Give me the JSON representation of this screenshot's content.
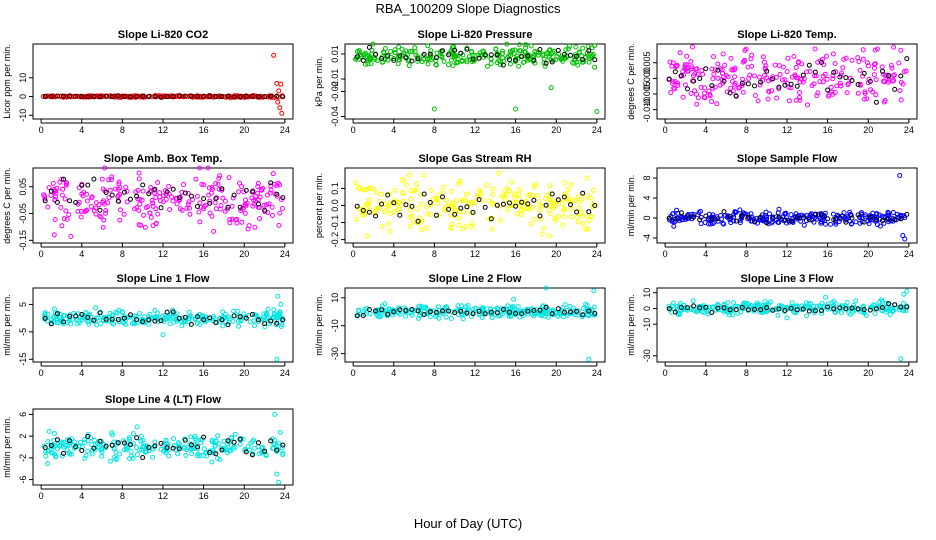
{
  "page": {
    "title": "RBA_100209  Slope Diagnostics",
    "xlabel": "Hour of Day (UTC)"
  },
  "chart_data": [
    {
      "type": "scatter",
      "title": "Slope Li-820 CO2",
      "ylabel": "Licor ppm per min.",
      "color": "#ff0000",
      "xticks": [
        "0",
        "4",
        "8",
        "12",
        "16",
        "20",
        "24"
      ],
      "xlim": [
        -0.8,
        24.8
      ],
      "ylim": [
        -12,
        28
      ],
      "yticks": [
        {
          "v": 10,
          "label": "10"
        },
        {
          "v": 0,
          "label": "0"
        },
        {
          "v": -10,
          "label": "-10"
        }
      ],
      "base": {
        "mean": 0,
        "sd": 0.25
      },
      "extra": [
        [
          22.9,
          22
        ],
        [
          23.2,
          7
        ],
        [
          23.4,
          3
        ],
        [
          23.6,
          6.5
        ],
        [
          23.3,
          -3
        ],
        [
          23.5,
          -6
        ],
        [
          23.7,
          -9
        ]
      ]
    },
    {
      "type": "scatter",
      "title": "Slope Li-820 Pressure",
      "ylabel": "kPa per min.",
      "color": "#00c000",
      "xticks": [
        "0",
        "4",
        "8",
        "12",
        "16",
        "20",
        "24"
      ],
      "xlim": [
        -0.8,
        24.8
      ],
      "ylim": [
        -0.042,
        0.018
      ],
      "yticks": [
        {
          "v": 0.01,
          "label": "0.01"
        },
        {
          "v": -0.01,
          "label": "-0.01"
        },
        {
          "v": -0.02,
          "label": "-0.02"
        },
        {
          "v": -0.04,
          "label": "-0.04"
        }
      ],
      "base": {
        "mean": 0.008,
        "sd": 0.004
      },
      "extra": [
        [
          8,
          -0.034
        ],
        [
          16,
          -0.034
        ],
        [
          19.5,
          -0.017
        ],
        [
          24,
          -0.036
        ]
      ]
    },
    {
      "type": "scatter",
      "title": "Slope Li-820 Temp.",
      "ylabel": "degrees C per min.",
      "color": "#ff00ff",
      "xticks": [
        "0",
        "4",
        "8",
        "12",
        "16",
        "20",
        "24"
      ],
      "xlim": [
        -0.8,
        24.8
      ],
      "ylim": [
        -0.013,
        0.011
      ],
      "yticks": [
        {
          "v": 0.005,
          "label": "0.005"
        },
        {
          "v": 0,
          "label": "0.000"
        },
        {
          "v": -0.005,
          "label": "-0.005"
        },
        {
          "v": -0.01,
          "label": "-0.010"
        }
      ],
      "base": {
        "mean": 0.0,
        "sd": 0.004
      },
      "extra": [
        [
          22.5,
          0.01
        ],
        [
          23.2,
          0.009
        ]
      ]
    },
    {
      "type": "scatter",
      "title": "Slope Amb. Box Temp.",
      "ylabel": "degrees C per min.",
      "color": "#ff00ff",
      "xticks": [
        "0",
        "4",
        "8",
        "12",
        "16",
        "20",
        "24"
      ],
      "xlim": [
        -0.8,
        24.8
      ],
      "ylim": [
        -0.16,
        0.12
      ],
      "yticks": [
        {
          "v": 0.05,
          "label": "0.05"
        },
        {
          "v": -0.05,
          "label": "-0.05"
        },
        {
          "v": -0.15,
          "label": "-0.15"
        }
      ],
      "base": {
        "mean": 0.0,
        "sd": 0.05
      },
      "extra": []
    },
    {
      "type": "scatter",
      "title": "Slope Gas Stream RH",
      "ylabel": "percent per min.",
      "color": "#ffff00",
      "xticks": [
        "0",
        "4",
        "8",
        "12",
        "16",
        "20",
        "24"
      ],
      "xlim": [
        -0.8,
        24.8
      ],
      "ylim": [
        -0.22,
        0.22
      ],
      "yticks": [
        {
          "v": 0.1,
          "label": "0.1"
        },
        {
          "v": 0,
          "label": "0.0"
        },
        {
          "v": -0.1,
          "label": "-0.1"
        },
        {
          "v": -0.2,
          "label": "-0.2"
        }
      ],
      "base": {
        "mean": 0.0,
        "sd": 0.07
      },
      "extra": []
    },
    {
      "type": "scatter",
      "title": "Slope Sample Flow",
      "ylabel": "ml/min per min.",
      "color": "#0000ff",
      "xticks": [
        "0",
        "4",
        "8",
        "12",
        "16",
        "20",
        "24"
      ],
      "xlim": [
        -0.8,
        24.8
      ],
      "ylim": [
        -5,
        10
      ],
      "yticks": [
        {
          "v": 8,
          "label": "8"
        },
        {
          "v": 4,
          "label": "4"
        },
        {
          "v": 0,
          "label": "0"
        },
        {
          "v": -4,
          "label": "-4"
        }
      ],
      "base": {
        "mean": 0.0,
        "sd": 0.7
      },
      "extra": [
        [
          23.1,
          8.5
        ],
        [
          23.4,
          -3.5
        ],
        [
          23.6,
          -4.2
        ]
      ]
    },
    {
      "type": "scatter",
      "title": "Slope Line 1 Flow",
      "ylabel": "ml/min per min.",
      "color": "#00e5e5",
      "xticks": [
        "0",
        "4",
        "8",
        "12",
        "16",
        "20",
        "24"
      ],
      "xlim": [
        -0.8,
        24.8
      ],
      "ylim": [
        -16,
        11
      ],
      "yticks": [
        {
          "v": 5,
          "label": "5"
        },
        {
          "v": -5,
          "label": "-5"
        },
        {
          "v": -15,
          "label": "-15"
        }
      ],
      "base": {
        "mean": 0.0,
        "sd": 1.5
      },
      "extra": [
        [
          23.2,
          -15
        ],
        [
          23.3,
          8
        ],
        [
          23.6,
          5
        ],
        [
          12,
          -6
        ]
      ]
    },
    {
      "type": "scatter",
      "title": "Slope Line 2 Flow",
      "ylabel": "ml/min per min.",
      "color": "#00e5e5",
      "xticks": [
        "0",
        "4",
        "8",
        "12",
        "16",
        "20",
        "24"
      ],
      "xlim": [
        -0.8,
        24.8
      ],
      "ylim": [
        -36,
        17
      ],
      "yticks": [
        {
          "v": 10,
          "label": "10"
        },
        {
          "v": -10,
          "label": "-10"
        },
        {
          "v": -30,
          "label": "-30"
        }
      ],
      "base": {
        "mean": 0.0,
        "sd": 2.2
      },
      "extra": [
        [
          23.2,
          -34
        ],
        [
          23.7,
          15
        ],
        [
          15.8,
          9
        ],
        [
          19,
          17
        ]
      ]
    },
    {
      "type": "scatter",
      "title": "Slope Line 3 Flow",
      "ylabel": "ml/min per min.",
      "color": "#00e5e5",
      "xticks": [
        "0",
        "4",
        "8",
        "12",
        "16",
        "20",
        "24"
      ],
      "xlim": [
        -0.8,
        24.8
      ],
      "ylim": [
        -34,
        13
      ],
      "yticks": [
        {
          "v": 10,
          "label": "10"
        },
        {
          "v": 0,
          "label": "0"
        },
        {
          "v": -10,
          "label": "-10"
        },
        {
          "v": -30,
          "label": "-30"
        }
      ],
      "base": {
        "mean": 0.0,
        "sd": 2.0
      },
      "extra": [
        [
          23.2,
          -32
        ],
        [
          23.8,
          11
        ],
        [
          23.5,
          9
        ],
        [
          15.8,
          7
        ],
        [
          12,
          -6
        ]
      ]
    },
    {
      "type": "scatter",
      "title": "Slope Line 4 (LT) Flow",
      "ylabel": "ml/min per min.",
      "color": "#00e5e5",
      "xticks": [
        "0",
        "4",
        "8",
        "12",
        "16",
        "20",
        "24"
      ],
      "xlim": [
        -0.8,
        24.8
      ],
      "ylim": [
        -7,
        7
      ],
      "yticks": [
        {
          "v": 6,
          "label": "6"
        },
        {
          "v": 2,
          "label": "2"
        },
        {
          "v": -2,
          "label": "-2"
        },
        {
          "v": -6,
          "label": "-6"
        }
      ],
      "base": {
        "mean": 0.0,
        "sd": 1.2
      },
      "extra": [
        [
          23,
          6
        ],
        [
          23.2,
          -5
        ],
        [
          23.4,
          -6.5
        ]
      ]
    }
  ]
}
